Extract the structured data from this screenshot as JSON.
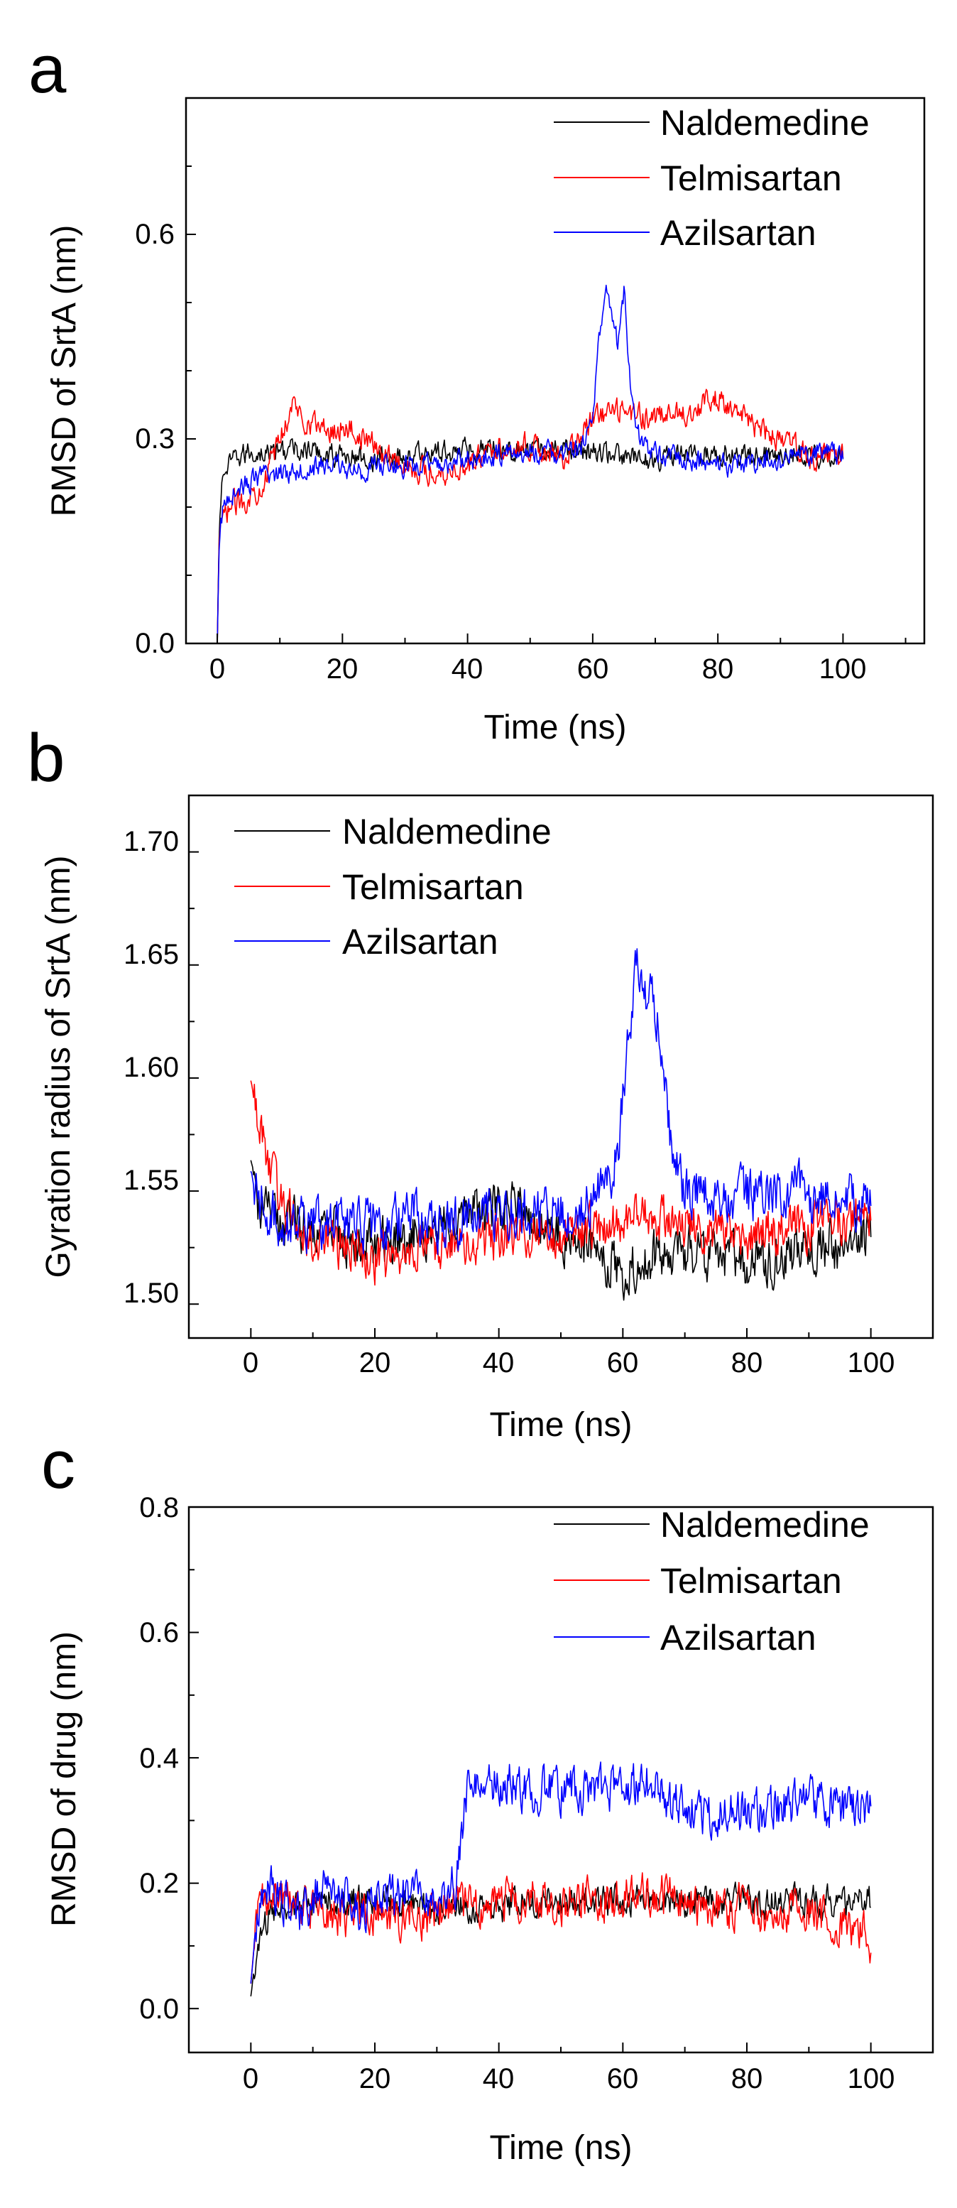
{
  "chart_data": [
    {
      "panel": "a",
      "type": "line",
      "title": "",
      "xlabel": "Time (ns)",
      "ylabel": "RMSD of SrtA (nm)",
      "xlim": [
        -5,
        113
      ],
      "ylim": [
        0,
        0.8
      ],
      "xticks": [
        "0",
        "20",
        "40",
        "60",
        "80",
        "100"
      ],
      "yticks": [
        "0.0",
        "0.3",
        "0.6"
      ],
      "legend_position": "top-right",
      "series": [
        {
          "name": "Naldemedine",
          "color": "#000000",
          "x": [
            0,
            0.3,
            0.6,
            1,
            2,
            3,
            5,
            8,
            12,
            16,
            20,
            25,
            30,
            35,
            40,
            45,
            50,
            55,
            60,
            62,
            64,
            66,
            70,
            75,
            80,
            85,
            90,
            95,
            100
          ],
          "y": [
            0.0,
            0.16,
            0.22,
            0.25,
            0.26,
            0.27,
            0.28,
            0.28,
            0.285,
            0.28,
            0.275,
            0.27,
            0.275,
            0.28,
            0.285,
            0.29,
            0.28,
            0.285,
            0.28,
            0.28,
            0.275,
            0.27,
            0.27,
            0.275,
            0.28,
            0.275,
            0.28,
            0.275,
            0.28
          ],
          "noise": 0.014
        },
        {
          "name": "Telmisartan",
          "color": "#ff0000",
          "x": [
            0,
            0.3,
            0.6,
            1,
            2,
            4,
            6,
            8,
            10,
            12,
            14,
            16,
            18,
            20,
            22,
            25,
            30,
            35,
            40,
            45,
            50,
            55,
            58,
            60,
            65,
            70,
            75,
            80,
            82,
            85,
            90,
            95,
            100
          ],
          "y": [
            0.0,
            0.15,
            0.18,
            0.18,
            0.2,
            0.21,
            0.22,
            0.25,
            0.3,
            0.35,
            0.33,
            0.32,
            0.31,
            0.32,
            0.31,
            0.29,
            0.26,
            0.25,
            0.26,
            0.29,
            0.29,
            0.27,
            0.3,
            0.33,
            0.34,
            0.33,
            0.34,
            0.36,
            0.35,
            0.32,
            0.3,
            0.27,
            0.28
          ],
          "noise": 0.016
        },
        {
          "name": "Azilsartan",
          "color": "#0000ff",
          "x": [
            0,
            0.3,
            0.6,
            1,
            2,
            4,
            6,
            10,
            15,
            20,
            22,
            25,
            30,
            35,
            40,
            45,
            50,
            55,
            58,
            60,
            61,
            62,
            63,
            64,
            65,
            66,
            67,
            68,
            70,
            75,
            80,
            85,
            90,
            95,
            100
          ],
          "y": [
            0.0,
            0.14,
            0.18,
            0.2,
            0.22,
            0.23,
            0.24,
            0.25,
            0.26,
            0.26,
            0.25,
            0.26,
            0.26,
            0.26,
            0.27,
            0.275,
            0.28,
            0.28,
            0.28,
            0.34,
            0.44,
            0.52,
            0.48,
            0.44,
            0.52,
            0.38,
            0.32,
            0.29,
            0.28,
            0.27,
            0.26,
            0.265,
            0.27,
            0.28,
            0.28
          ],
          "noise": 0.014
        }
      ]
    },
    {
      "panel": "b",
      "type": "line",
      "title": "",
      "xlabel": "Time (ns)",
      "ylabel": "Gyration radius of SrtA (nm)",
      "xlim": [
        -10,
        110
      ],
      "ylim": [
        1.485,
        1.725
      ],
      "xticks": [
        "0",
        "20",
        "40",
        "60",
        "80",
        "100"
      ],
      "yticks": [
        "1.50",
        "1.55",
        "1.60",
        "1.65",
        "1.70"
      ],
      "legend_position": "top-left",
      "series": [
        {
          "name": "Naldemedine",
          "color": "#000000",
          "x": [
            0,
            1,
            3,
            5,
            10,
            15,
            20,
            25,
            30,
            35,
            40,
            42,
            45,
            50,
            55,
            58,
            60,
            62,
            65,
            70,
            75,
            80,
            85,
            90,
            95,
            100
          ],
          "y": [
            1.565,
            1.545,
            1.54,
            1.535,
            1.535,
            1.53,
            1.525,
            1.53,
            1.535,
            1.54,
            1.54,
            1.545,
            1.535,
            1.53,
            1.525,
            1.518,
            1.515,
            1.515,
            1.52,
            1.525,
            1.52,
            1.52,
            1.52,
            1.525,
            1.525,
            1.53
          ],
          "noise": 0.01
        },
        {
          "name": "Telmisartan",
          "color": "#ff0000",
          "x": [
            0,
            0.5,
            1,
            2,
            3,
            5,
            8,
            10,
            15,
            20,
            25,
            30,
            35,
            40,
            45,
            50,
            55,
            60,
            65,
            70,
            75,
            80,
            85,
            90,
            95,
            100
          ],
          "y": [
            1.6,
            1.59,
            1.585,
            1.575,
            1.56,
            1.545,
            1.535,
            1.53,
            1.525,
            1.52,
            1.522,
            1.525,
            1.528,
            1.53,
            1.532,
            1.53,
            1.532,
            1.535,
            1.54,
            1.535,
            1.532,
            1.53,
            1.532,
            1.535,
            1.535,
            1.54
          ],
          "noise": 0.009
        },
        {
          "name": "Azilsartan",
          "color": "#0000ff",
          "x": [
            0,
            1,
            3,
            5,
            10,
            15,
            20,
            25,
            30,
            35,
            40,
            45,
            50,
            55,
            57,
            59,
            60,
            61,
            62,
            63,
            64,
            65,
            66,
            67,
            68,
            70,
            75,
            80,
            85,
            88,
            90,
            95,
            100
          ],
          "y": [
            1.56,
            1.545,
            1.54,
            1.535,
            1.535,
            1.535,
            1.535,
            1.54,
            1.535,
            1.535,
            1.54,
            1.54,
            1.54,
            1.545,
            1.55,
            1.565,
            1.59,
            1.62,
            1.65,
            1.64,
            1.63,
            1.635,
            1.62,
            1.59,
            1.565,
            1.55,
            1.548,
            1.548,
            1.548,
            1.552,
            1.545,
            1.545,
            1.545
          ],
          "noise": 0.01
        }
      ]
    },
    {
      "panel": "c",
      "type": "line",
      "title": "",
      "xlabel": "Time (ns)",
      "ylabel": "RMSD of drug (nm)",
      "xlim": [
        -10,
        110
      ],
      "ylim": [
        -0.07,
        0.8
      ],
      "xticks": [
        "0",
        "20",
        "40",
        "60",
        "80",
        "100"
      ],
      "yticks": [
        "0.0",
        "0.2",
        "0.4",
        "0.6",
        "0.8"
      ],
      "legend_position": "top-right",
      "series": [
        {
          "name": "Naldemedine",
          "color": "#000000",
          "x": [
            0,
            0.5,
            1,
            2,
            3,
            5,
            10,
            15,
            20,
            25,
            30,
            35,
            40,
            45,
            50,
            55,
            60,
            65,
            70,
            75,
            80,
            85,
            90,
            95,
            100
          ],
          "y": [
            0.02,
            0.06,
            0.08,
            0.12,
            0.15,
            0.16,
            0.17,
            0.17,
            0.17,
            0.17,
            0.16,
            0.16,
            0.16,
            0.17,
            0.17,
            0.17,
            0.17,
            0.18,
            0.17,
            0.17,
            0.17,
            0.17,
            0.17,
            0.17,
            0.17
          ],
          "noise": 0.022
        },
        {
          "name": "Telmisartan",
          "color": "#ff0000",
          "x": [
            0,
            0.5,
            1,
            2,
            3,
            5,
            10,
            15,
            20,
            25,
            30,
            35,
            40,
            45,
            50,
            55,
            60,
            65,
            70,
            75,
            80,
            85,
            90,
            95,
            98,
            100
          ],
          "y": [
            0.04,
            0.1,
            0.14,
            0.17,
            0.18,
            0.17,
            0.16,
            0.15,
            0.15,
            0.15,
            0.15,
            0.16,
            0.18,
            0.17,
            0.17,
            0.17,
            0.18,
            0.18,
            0.17,
            0.16,
            0.16,
            0.15,
            0.15,
            0.14,
            0.12,
            0.11
          ],
          "noise": 0.03
        },
        {
          "name": "Azilsartan",
          "color": "#0000ff",
          "x": [
            0,
            0.5,
            1,
            2,
            3,
            5,
            8,
            10,
            12,
            15,
            18,
            20,
            25,
            30,
            33,
            34,
            35,
            40,
            45,
            50,
            55,
            60,
            65,
            67,
            70,
            75,
            80,
            85,
            90,
            95,
            100
          ],
          "y": [
            0.04,
            0.1,
            0.15,
            0.18,
            0.2,
            0.17,
            0.15,
            0.17,
            0.2,
            0.18,
            0.16,
            0.17,
            0.18,
            0.18,
            0.2,
            0.28,
            0.36,
            0.36,
            0.35,
            0.35,
            0.35,
            0.35,
            0.36,
            0.33,
            0.32,
            0.31,
            0.31,
            0.32,
            0.33,
            0.32,
            0.31
          ],
          "noise": 0.03
        }
      ]
    }
  ]
}
